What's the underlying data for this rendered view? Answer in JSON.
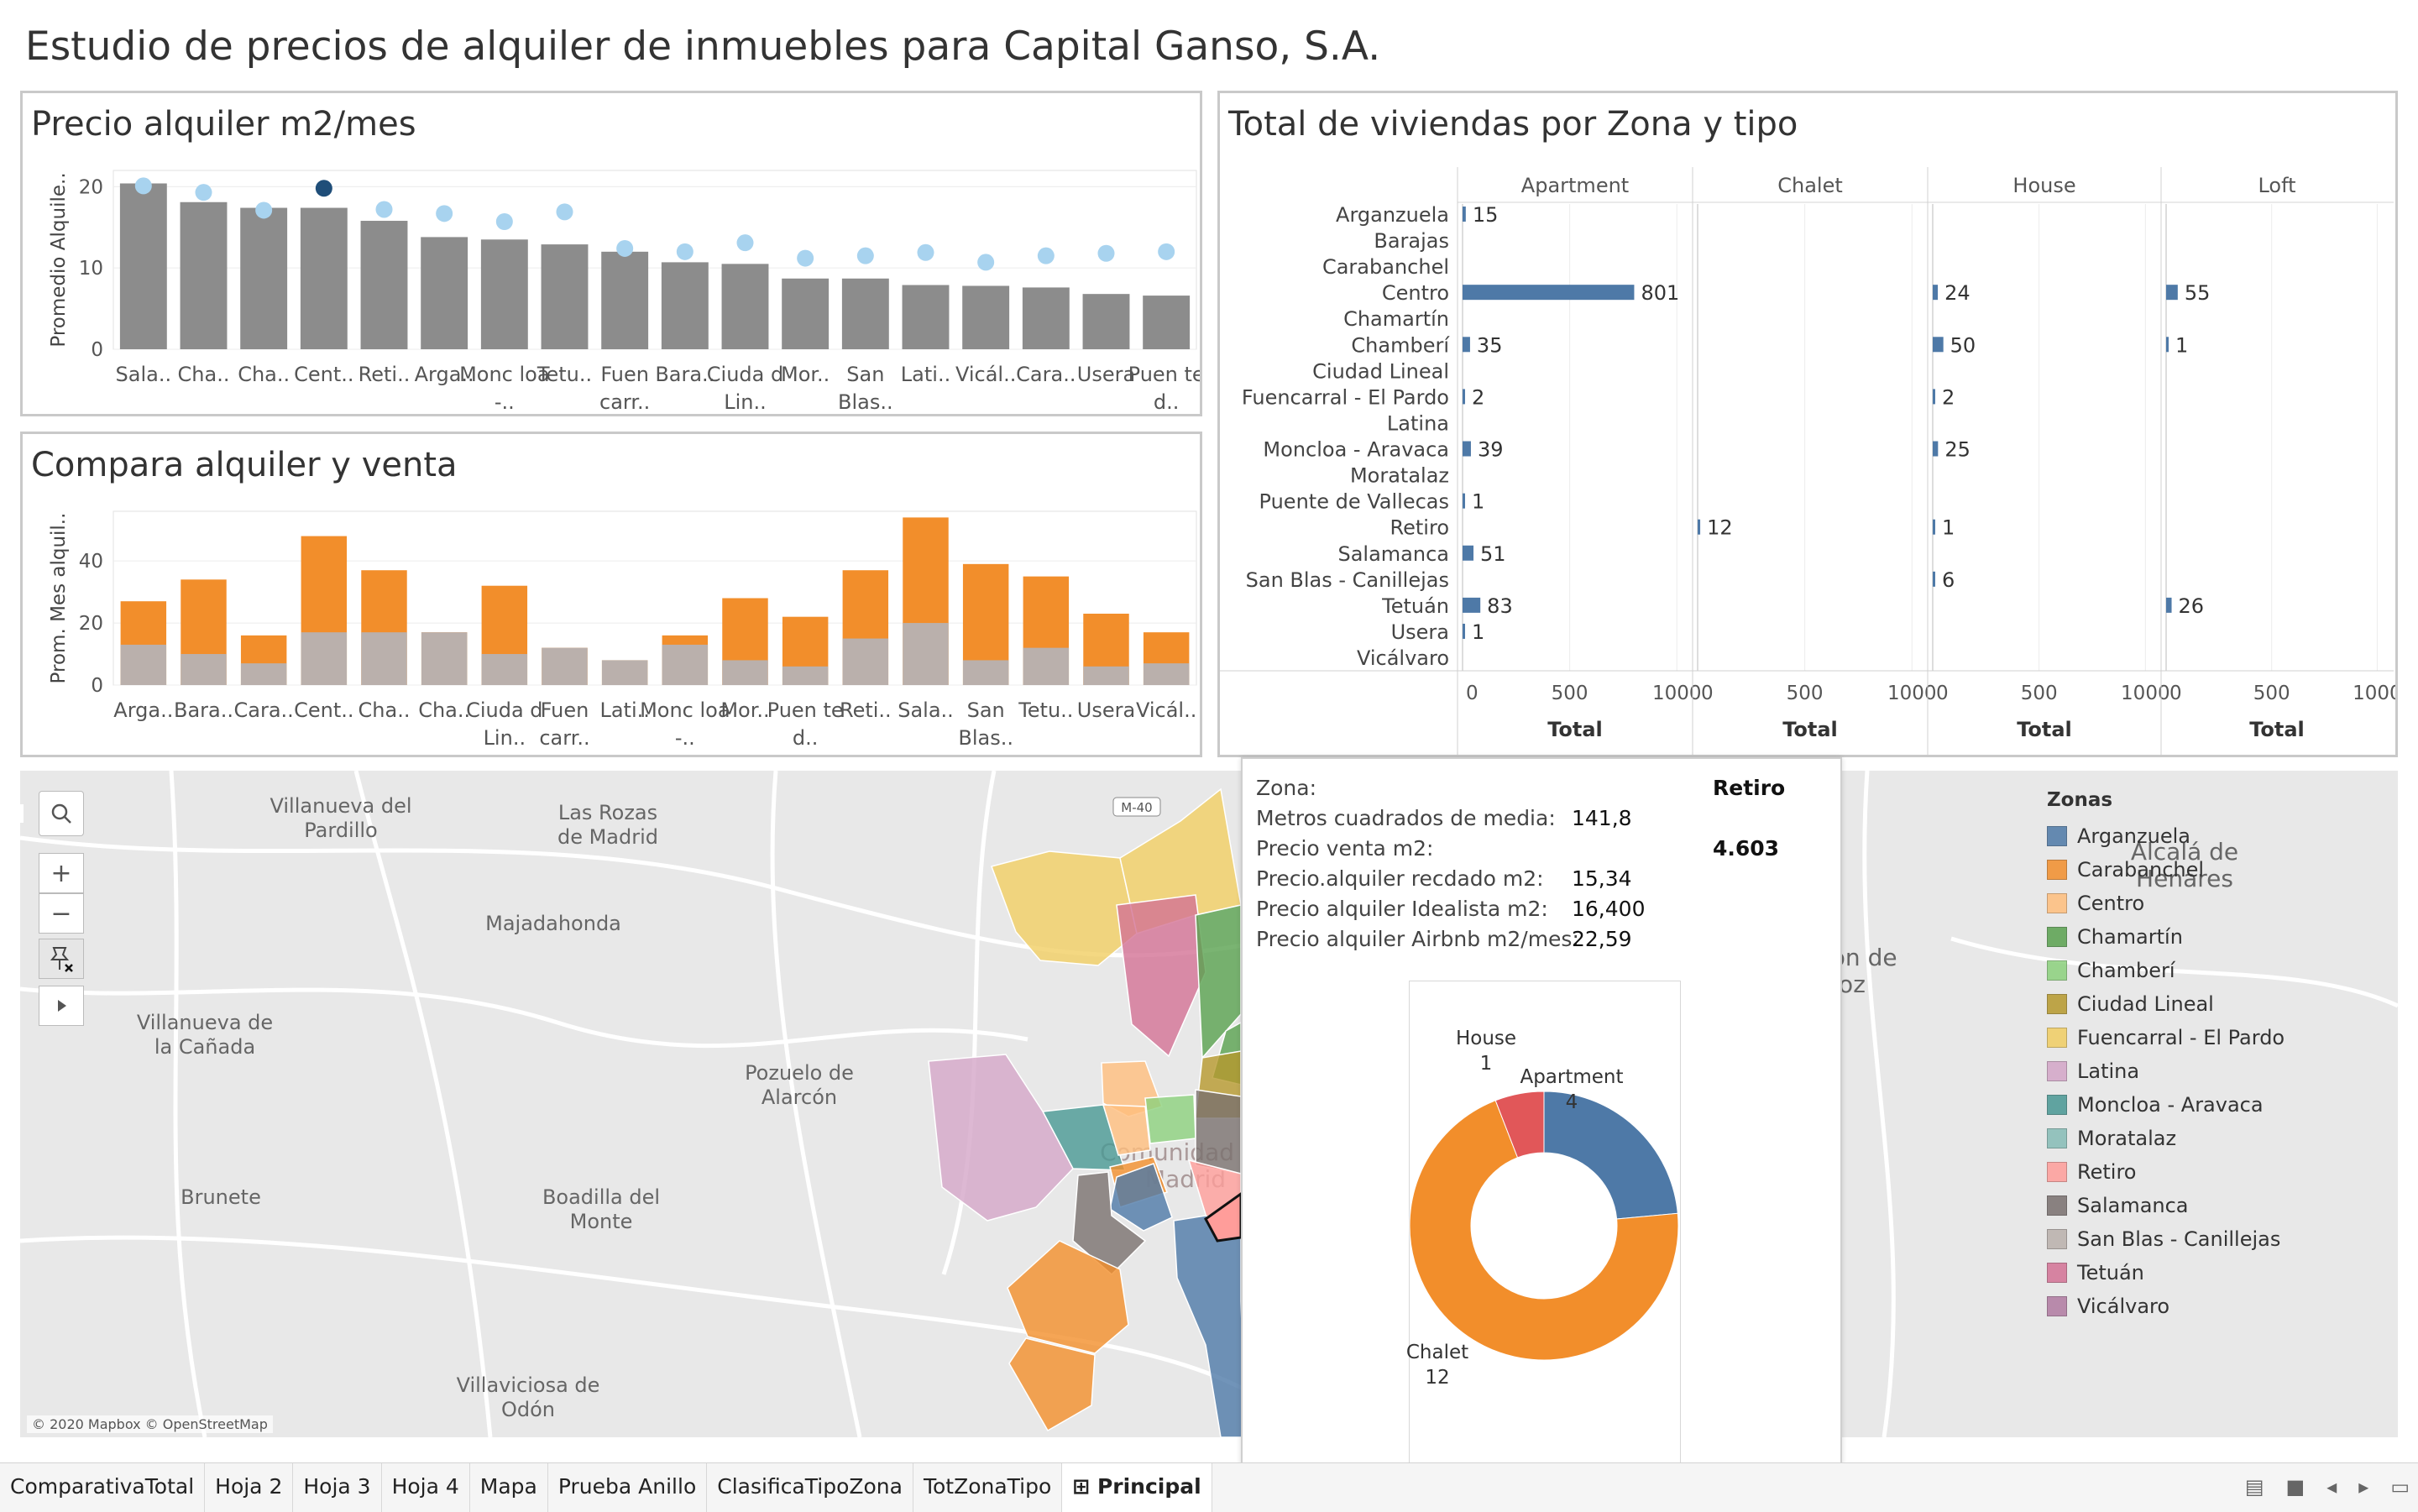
{
  "dashboard_title": "Estudio de precios de alquiler de inmuebles para Capital Ganso, S.A.",
  "colors": {
    "bar_gray": "#8c8c8c",
    "dot_light": "#a8d3ef",
    "dot_dark": "#1f4e79",
    "orange": "#f28e2b",
    "taupe": "#bab0ac",
    "blue": "#4e79a7"
  },
  "chart_data": [
    {
      "type": "bar",
      "title": "Precio alquiler m2/mes",
      "ylabel": "Promedio Alquile..",
      "ylim": [
        0,
        22
      ],
      "yticks": [
        "20",
        "10",
        "0"
      ],
      "categories": [
        "Sala..",
        "Cha..",
        "Cha..",
        "Cent..",
        "Reti..",
        "Arga..",
        "Monc loa -..",
        "Tetu..",
        "Fuen carr..",
        "Bara..",
        "Ciuda d Lin..",
        "Mor..",
        "San Blas..",
        "Lati..",
        "Vicál..",
        "Cara..",
        "Usera",
        "Puen te d.."
      ],
      "series": [
        {
          "values": [
            20.4,
            18.1,
            17.4,
            17.4,
            15.8,
            13.8,
            13.5,
            12.9,
            12.0,
            10.7,
            10.5,
            8.7,
            8.7,
            7.9,
            7.8,
            7.6,
            6.8,
            6.6
          ]
        },
        {
          "values": [
            20.1,
            19.3,
            17.1,
            19.8,
            17.2,
            16.7,
            15.7,
            16.9,
            12.4,
            12.0,
            13.1,
            11.2,
            11.5,
            11.9,
            10.7,
            11.5,
            11.8,
            12.0
          ],
          "highlight_index": 3
        }
      ]
    },
    {
      "type": "bar",
      "title": "Compara alquiler y venta",
      "ylabel": "Prom. Mes alquil..",
      "ylim": [
        0,
        56
      ],
      "yticks": [
        "40",
        "20",
        "0"
      ],
      "categories": [
        "Arga..",
        "Bara..",
        "Cara..",
        "Cent..",
        "Cha..",
        "Cha..",
        "Ciuda d Lin..",
        "Fuen carr..",
        "Lati..",
        "Monc loa -..",
        "Mor..",
        "Puen te d..",
        "Reti..",
        "Sala..",
        "San Blas..",
        "Tetu..",
        "Usera",
        "Vicál.."
      ],
      "series": [
        {
          "values": [
            13,
            10,
            7,
            17,
            17,
            17,
            10,
            12,
            8,
            13,
            8,
            6,
            15,
            20,
            8,
            12,
            6,
            7
          ]
        },
        {
          "values": [
            27,
            34,
            16,
            48,
            37,
            17,
            32,
            12,
            8,
            16,
            28,
            22,
            37,
            54,
            39,
            35,
            23,
            17
          ]
        }
      ]
    },
    {
      "type": "bar",
      "title": "Total de viviendas por Zona y tipo",
      "columns": [
        "Apartment",
        "Chalet",
        "House",
        "Loft"
      ],
      "rows": [
        "Arganzuela",
        "Barajas",
        "Carabanchel",
        "Centro",
        "Chamartín",
        "Chamberí",
        "Ciudad Lineal",
        "Fuencarral - El Pardo",
        "Latina",
        "Moncloa - Aravaca",
        "Moratalaz",
        "Puente de Vallecas",
        "Retiro",
        "Salamanca",
        "San Blas - Canillejas",
        "Tetuán",
        "Usera",
        "Vicálvaro"
      ],
      "values": [
        [
          15,
          null,
          null,
          null
        ],
        [
          null,
          null,
          null,
          null
        ],
        [
          null,
          null,
          null,
          null
        ],
        [
          801,
          null,
          24,
          55
        ],
        [
          null,
          null,
          null,
          null
        ],
        [
          35,
          null,
          50,
          1
        ],
        [
          null,
          null,
          null,
          null
        ],
        [
          2,
          null,
          2,
          null
        ],
        [
          null,
          null,
          null,
          null
        ],
        [
          39,
          null,
          25,
          null
        ],
        [
          null,
          null,
          null,
          null
        ],
        [
          1,
          null,
          null,
          null
        ],
        [
          null,
          12,
          1,
          null
        ],
        [
          51,
          null,
          null,
          null
        ],
        [
          null,
          null,
          6,
          null
        ],
        [
          83,
          null,
          null,
          26
        ],
        [
          1,
          null,
          null,
          null
        ],
        [
          null,
          null,
          null,
          null
        ]
      ],
      "xlim": [
        0,
        1050
      ],
      "xticks": [
        "0",
        "500",
        "1000"
      ],
      "xlabel": "Total"
    },
    {
      "type": "pie",
      "slices": [
        {
          "label": "Apartment",
          "value": 4
        },
        {
          "label": "Chalet",
          "value": 12
        },
        {
          "label": "House",
          "value": 1
        }
      ]
    }
  ],
  "map": {
    "places": [
      "Villanueva del Pardillo",
      "Las Rozas de Madrid",
      "Majadahonda",
      "Villanueva de la Cañada",
      "Pozuelo de Alarcón",
      "Boadilla del Monte",
      "Brunete",
      "Villaviciosa de Odón",
      "Alcalá de Henares",
      "Torrejón de Ardoz",
      "Comunidad de Madrid"
    ],
    "road": "M-40",
    "attribution": "© 2020 Mapbox © OpenStreetMap",
    "zoom_in": "+",
    "zoom_out": "−"
  },
  "tooltip": {
    "rows": [
      {
        "label": "Zona:",
        "value": "Retiro"
      },
      {
        "label": "Metros cuadrados de media:",
        "value": "141,8"
      },
      {
        "label": "Precio venta m2:",
        "value": "4.603"
      },
      {
        "label": "Precio.alquiler recdado m2:",
        "value": "15,34"
      },
      {
        "label": "Precio alquiler Idealista m2:",
        "value": "16,400"
      },
      {
        "label": "Precio alquiler Airbnb m2/mes:",
        "value": "22,59"
      }
    ]
  },
  "legend": {
    "title": "Zonas",
    "items": [
      {
        "label": "Arganzuela",
        "color": "#4e79a7"
      },
      {
        "label": "Carabanchel",
        "color": "#f28e2b"
      },
      {
        "label": "Centro",
        "color": "#ffbe7d"
      },
      {
        "label": "Chamartín",
        "color": "#59a14f"
      },
      {
        "label": "Chamberí",
        "color": "#8cd17d"
      },
      {
        "label": "Ciudad Lineal",
        "color": "#b6992d"
      },
      {
        "label": "Fuencarral - El Pardo",
        "color": "#f1ce63"
      },
      {
        "label": "Latina",
        "color": "#d4a6c8"
      },
      {
        "label": "Moncloa - Aravaca",
        "color": "#499894"
      },
      {
        "label": "Moratalaz",
        "color": "#86bcb6"
      },
      {
        "label": "Retiro",
        "color": "#ff9d9a"
      },
      {
        "label": "Salamanca",
        "color": "#79706e"
      },
      {
        "label": "San Blas - Canillejas",
        "color": "#bab0ac"
      },
      {
        "label": "Tetuán",
        "color": "#d37295"
      },
      {
        "label": "Vicálvaro",
        "color": "#b07aa1"
      }
    ]
  },
  "tabs": [
    {
      "label": "ComparativaTotal"
    },
    {
      "label": "Hoja 2"
    },
    {
      "label": "Hoja 3"
    },
    {
      "label": "Hoja 4"
    },
    {
      "label": "Mapa"
    },
    {
      "label": "Prueba Anillo"
    },
    {
      "label": "ClasificaTipoZona"
    },
    {
      "label": "TotZonaTipo"
    },
    {
      "label": "Principal",
      "active": true
    }
  ],
  "tab_icons": [
    "grid-icon",
    "square-icon",
    "prev-icon",
    "next-icon",
    "present-icon"
  ]
}
